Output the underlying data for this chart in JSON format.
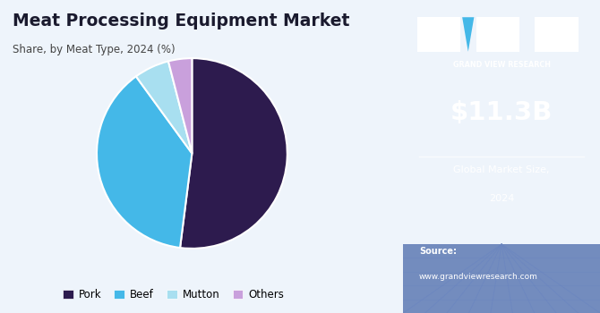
{
  "title": "Meat Processing Equipment Market",
  "subtitle": "Share, by Meat Type, 2024 (%)",
  "labels": [
    "Pork",
    "Beef",
    "Mutton",
    "Others"
  ],
  "values": [
    52,
    38,
    6,
    4
  ],
  "colors": [
    "#2d1b4e",
    "#44b8e8",
    "#a8dff0",
    "#c9a0dc"
  ],
  "bg_color": "#eef4fb",
  "right_panel_color": "#3b1f6e",
  "market_size": "$11.3B",
  "market_label1": "Global Market Size,",
  "market_label2": "2024",
  "source_label": "Source:",
  "source_url": "www.grandviewresearch.com",
  "title_color": "#1a1a2e",
  "subtitle_color": "#444444",
  "legend_colors": [
    "#2d1b4e",
    "#44b8e8",
    "#a8dff0",
    "#c9a0dc"
  ],
  "startangle": 90,
  "logo_color": "#44b8e8",
  "grid_color": "#6a85c0"
}
